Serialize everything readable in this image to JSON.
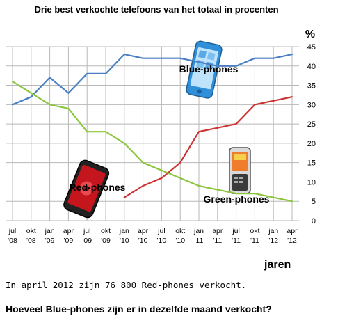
{
  "chart_data": {
    "type": "line",
    "title": "Drie best verkochte telefoons van het totaal in procenten",
    "ylabel": "%",
    "xlabel": "jaren",
    "ylim": [
      0,
      45
    ],
    "yticks": [
      0,
      5,
      10,
      15,
      20,
      25,
      30,
      35,
      40,
      45
    ],
    "grid": true,
    "categories": [
      [
        "jul",
        "'08"
      ],
      [
        "okt",
        "'08"
      ],
      [
        "jan",
        "'09"
      ],
      [
        "apr",
        "'09"
      ],
      [
        "jul",
        "'09"
      ],
      [
        "okt",
        "'09"
      ],
      [
        "jan",
        "'10"
      ],
      [
        "apr",
        "'10"
      ],
      [
        "jul",
        "'10"
      ],
      [
        "okt",
        "'10"
      ],
      [
        "jan",
        "'11"
      ],
      [
        "apr",
        "'11"
      ],
      [
        "jul",
        "'11"
      ],
      [
        "okt",
        "'11"
      ],
      [
        "jan",
        "'12"
      ],
      [
        "apr",
        "'12"
      ]
    ],
    "series": [
      {
        "name": "Blue-phones",
        "color": "#4a7fc4",
        "values": [
          30,
          32,
          37,
          33,
          38,
          38,
          43,
          42,
          42,
          42,
          41,
          40,
          40,
          42,
          42,
          43
        ]
      },
      {
        "name": "Red-phones",
        "color": "#cc3333",
        "values": [
          null,
          null,
          null,
          null,
          null,
          null,
          6,
          9,
          11,
          15,
          23,
          24,
          25,
          30,
          31,
          32
        ]
      },
      {
        "name": "Green-phones",
        "color": "#8cc63f",
        "values": [
          36,
          33,
          30,
          29,
          23,
          23,
          20,
          15,
          13,
          11,
          9,
          8,
          7,
          7,
          6,
          5
        ]
      }
    ],
    "series_labels": [
      "Blue-phones",
      "Red-phones",
      "Green-phones"
    ]
  },
  "text": {
    "statement": "In april 2012 zijn 76 800 Red-phones verkocht.",
    "question": "Hoeveel Blue-phones zijn er in dezelfde maand verkocht?"
  },
  "icons": [
    "blue-phone-icon",
    "red-phone-icon",
    "green-phone-icon"
  ]
}
